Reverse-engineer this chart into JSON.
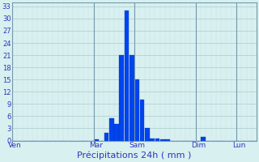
{
  "title": "Précipitations 24h ( mm )",
  "background_color": "#d8f0f0",
  "bar_color": "#0044ee",
  "bar_edge_color": "#0033bb",
  "grid_color": "#aacccc",
  "grid_color_minor": "#ccdddd",
  "text_color": "#3333bb",
  "ylim": [
    0,
    34
  ],
  "yticks": [
    0,
    3,
    6,
    9,
    12,
    15,
    18,
    21,
    24,
    27,
    30,
    33
  ],
  "bar_values": [
    0,
    0,
    0,
    0,
    0,
    0,
    0,
    0,
    0,
    0,
    0,
    0,
    0,
    0,
    0,
    0,
    0.3,
    0,
    2,
    5.5,
    4,
    21,
    32,
    21,
    15,
    10,
    3,
    0.5,
    0.5,
    0.3,
    0.3,
    0,
    0,
    0,
    0,
    0,
    0,
    1,
    0,
    0,
    0,
    0,
    0,
    0,
    0,
    0,
    0,
    0
  ],
  "n_bars": 48,
  "day_labels": [
    "Ven",
    "Mar",
    "Sam",
    "Dim",
    "Lun"
  ],
  "day_positions": [
    0,
    16,
    24,
    36,
    44
  ],
  "ytick_fontsize": 6,
  "xtick_fontsize": 6.5,
  "xlabel_fontsize": 8
}
